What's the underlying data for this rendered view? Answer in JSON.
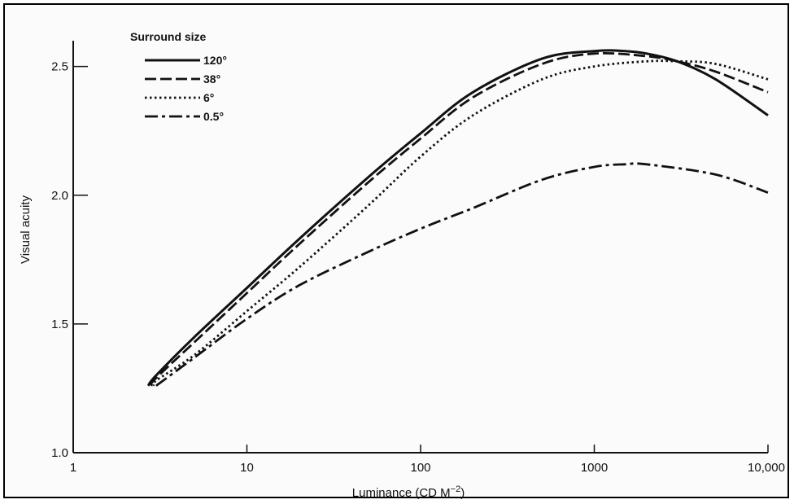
{
  "chart_data": {
    "type": "line",
    "xlabel": "Luminance (CD M",
    "xlabel_exponent": "−2",
    "xlabel_close": ")",
    "ylabel": "Visual acuity",
    "xscale": "log",
    "xlim": [
      1,
      10000
    ],
    "ylim": [
      1.0,
      2.6
    ],
    "grid": false,
    "legend_placement": "top-left",
    "legend_title": "Surround size",
    "x_ticks": [
      {
        "value": 1,
        "label": "1"
      },
      {
        "value": 10,
        "label": "10"
      },
      {
        "value": 100,
        "label": "100"
      },
      {
        "value": 1000,
        "label": "1000"
      },
      {
        "value": 10000,
        "label": "10,000"
      }
    ],
    "y_ticks": [
      {
        "value": 1.0,
        "label": "1.0"
      },
      {
        "value": 1.5,
        "label": "1.5"
      },
      {
        "value": 2.0,
        "label": "2.0"
      },
      {
        "value": 2.5,
        "label": "2.5"
      }
    ],
    "series": [
      {
        "name": "120°",
        "dash": "solid",
        "color": "#111111",
        "x": [
          2.7,
          3,
          5,
          10,
          20,
          50,
          100,
          200,
          500,
          1000,
          1500,
          2000,
          3000,
          5000,
          10000
        ],
        "y": [
          1.26,
          1.3,
          1.45,
          1.64,
          1.83,
          2.07,
          2.24,
          2.4,
          2.53,
          2.56,
          2.56,
          2.55,
          2.52,
          2.45,
          2.31
        ]
      },
      {
        "name": "38°",
        "dash": "dashed",
        "color": "#111111",
        "x": [
          2.8,
          3,
          5,
          10,
          20,
          50,
          100,
          200,
          500,
          1000,
          2000,
          3000,
          5000,
          10000
        ],
        "y": [
          1.26,
          1.29,
          1.43,
          1.62,
          1.81,
          2.05,
          2.22,
          2.38,
          2.51,
          2.55,
          2.54,
          2.52,
          2.48,
          2.4
        ]
      },
      {
        "name": "6°",
        "dash": "dotted",
        "color": "#111111",
        "x": [
          2.9,
          3,
          5,
          10,
          20,
          50,
          100,
          200,
          500,
          1000,
          2000,
          3000,
          5000,
          10000
        ],
        "y": [
          1.26,
          1.28,
          1.38,
          1.55,
          1.72,
          1.96,
          2.15,
          2.31,
          2.45,
          2.5,
          2.52,
          2.52,
          2.51,
          2.45
        ]
      },
      {
        "name": "0.5°",
        "dash": "dashdot",
        "color": "#111111",
        "x": [
          3,
          5,
          10,
          20,
          50,
          100,
          200,
          500,
          1000,
          1500,
          2000,
          5000,
          10000
        ],
        "y": [
          1.26,
          1.37,
          1.52,
          1.65,
          1.78,
          1.87,
          1.95,
          2.06,
          2.11,
          2.12,
          2.12,
          2.08,
          2.01
        ]
      }
    ]
  }
}
